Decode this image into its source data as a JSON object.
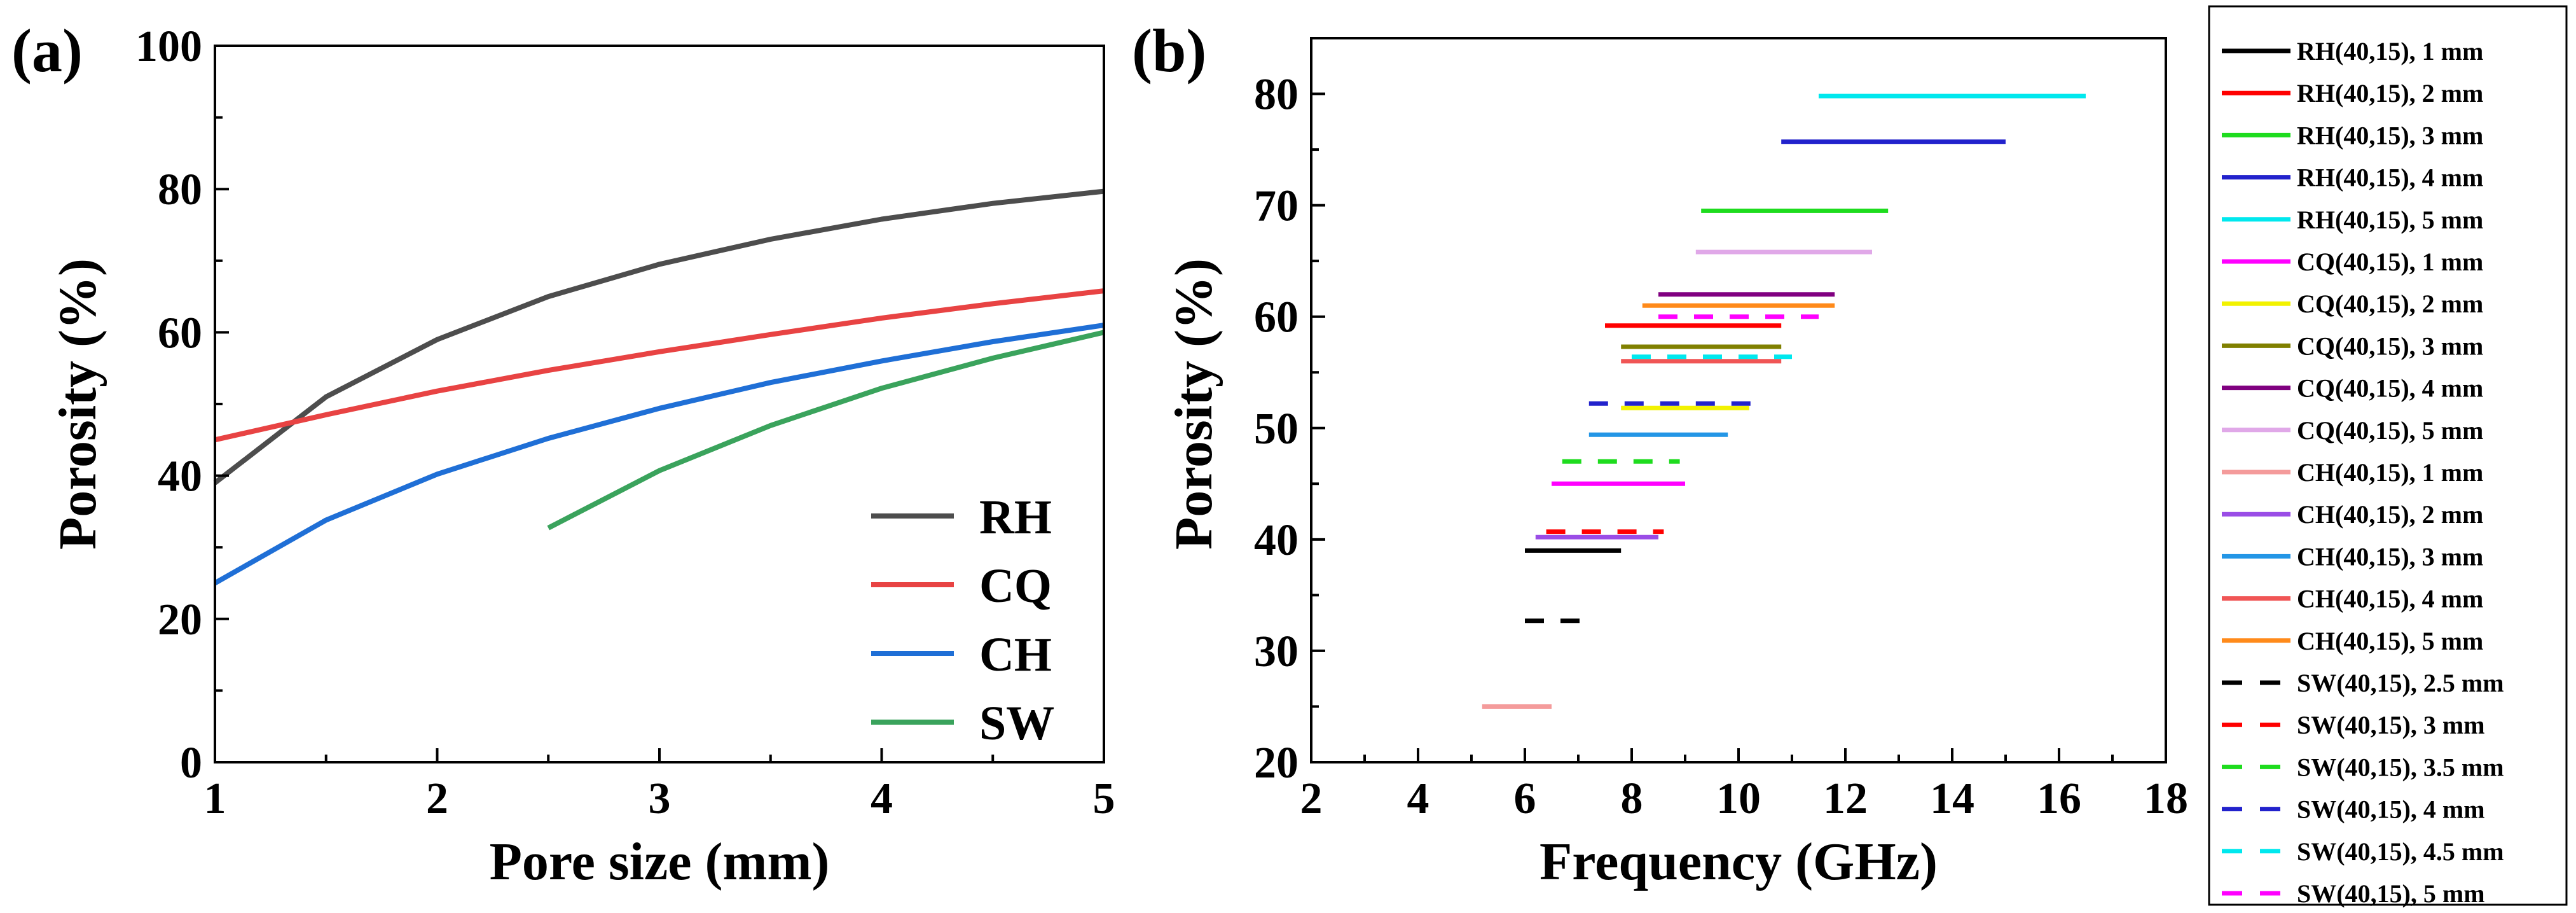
{
  "chart_data": [
    {
      "panel_label": "(a)",
      "type": "line",
      "title": "",
      "xlabel": "Pore size (mm)",
      "ylabel": "Porosity (%)",
      "xlim": [
        1,
        5
      ],
      "ylim": [
        0,
        100
      ],
      "xticks": [
        "1",
        "2",
        "3",
        "4",
        "5"
      ],
      "yticks": [
        "0",
        "20",
        "40",
        "60",
        "80",
        "100"
      ],
      "legend": "bottom-right",
      "series": [
        {
          "name": "RH",
          "color": "#4d4d4d",
          "x": [
            1,
            1.5,
            2,
            2.5,
            3,
            3.5,
            4,
            4.5,
            5
          ],
          "y": [
            39,
            51,
            59,
            65,
            69.5,
            73,
            75.8,
            78,
            79.7
          ]
        },
        {
          "name": "CQ",
          "color": "#e84343",
          "x": [
            1,
            1.5,
            2,
            2.5,
            3,
            3.5,
            4,
            4.5,
            5
          ],
          "y": [
            45,
            48.5,
            51.8,
            54.7,
            57.3,
            59.7,
            62,
            64,
            65.8
          ]
        },
        {
          "name": "CH",
          "color": "#1f6fd6",
          "x": [
            1,
            1.5,
            2,
            2.5,
            3,
            3.5,
            4,
            4.5,
            5
          ],
          "y": [
            25,
            33.8,
            40.2,
            45.2,
            49.4,
            53,
            56,
            58.7,
            61
          ]
        },
        {
          "name": "SW",
          "color": "#3aa35c",
          "x": [
            2.5,
            3,
            3.5,
            4,
            4.5,
            5
          ],
          "y": [
            32.7,
            40.7,
            47,
            52.2,
            56.4,
            60
          ]
        }
      ]
    },
    {
      "panel_label": "(b)",
      "type": "range",
      "title": "",
      "xlabel": "Frequency (GHz)",
      "ylabel": "Porosity (%)",
      "xlim": [
        2,
        18
      ],
      "ylim": [
        20,
        85
      ],
      "xticks": [
        "2",
        "4",
        "6",
        "8",
        "10",
        "12",
        "14",
        "16",
        "18"
      ],
      "yticks": [
        "20",
        "30",
        "40",
        "50",
        "60",
        "70",
        "80"
      ],
      "legend": "outside-right",
      "series": [
        {
          "name": "RH(40,15), 1 mm",
          "color": "#000000",
          "dash": false,
          "y": 39,
          "x_start": 6,
          "x_end": 7.8
        },
        {
          "name": "RH(40,15), 2 mm",
          "color": "#ff0000",
          "dash": false,
          "y": 59.2,
          "x_start": 7.5,
          "x_end": 10.8
        },
        {
          "name": "RH(40,15), 3 mm",
          "color": "#1edc1e",
          "dash": false,
          "y": 69.5,
          "x_start": 9.3,
          "x_end": 12.8
        },
        {
          "name": "RH(40,15), 4 mm",
          "color": "#2222cc",
          "dash": false,
          "y": 75.7,
          "x_start": 10.8,
          "x_end": 15
        },
        {
          "name": "RH(40,15), 5 mm",
          "color": "#00e8ee",
          "dash": false,
          "y": 79.8,
          "x_start": 11.5,
          "x_end": 16.5
        },
        {
          "name": "CQ(40,15), 1 mm",
          "color": "#ff00ff",
          "dash": false,
          "y": 45,
          "x_start": 6.5,
          "x_end": 9
        },
        {
          "name": "CQ(40,15), 2 mm",
          "color": "#f2f200",
          "dash": false,
          "y": 51.8,
          "x_start": 7.8,
          "x_end": 10.2
        },
        {
          "name": "CQ(40,15), 3 mm",
          "color": "#808000",
          "dash": false,
          "y": 57.3,
          "x_start": 7.8,
          "x_end": 10.8
        },
        {
          "name": "CQ(40,15), 4 mm",
          "color": "#800080",
          "dash": false,
          "y": 62,
          "x_start": 8.5,
          "x_end": 11.8
        },
        {
          "name": "CQ(40,15), 5 mm",
          "color": "#e0a8e8",
          "dash": false,
          "y": 65.8,
          "x_start": 9.2,
          "x_end": 12.5
        },
        {
          "name": "CH(40,15), 1 mm",
          "color": "#f49b9b",
          "dash": false,
          "y": 25,
          "x_start": 5.2,
          "x_end": 6.5
        },
        {
          "name": "CH(40,15), 2 mm",
          "color": "#9a4de6",
          "dash": false,
          "y": 40.2,
          "x_start": 6.2,
          "x_end": 8.5
        },
        {
          "name": "CH(40,15), 3 mm",
          "color": "#2396e6",
          "dash": false,
          "y": 49.4,
          "x_start": 7.2,
          "x_end": 9.8
        },
        {
          "name": "CH(40,15), 4 mm",
          "color": "#f05555",
          "dash": false,
          "y": 56,
          "x_start": 7.8,
          "x_end": 10.8
        },
        {
          "name": "CH(40,15), 5 mm",
          "color": "#ff8a1a",
          "dash": false,
          "y": 61,
          "x_start": 8.2,
          "x_end": 11.8
        },
        {
          "name": "SW(40,15), 2.5 mm",
          "color": "#000000",
          "dash": true,
          "y": 32.7,
          "x_start": 6,
          "x_end": 7.2
        },
        {
          "name": "SW(40,15), 3 mm",
          "color": "#ff0000",
          "dash": true,
          "y": 40.7,
          "x_start": 6.4,
          "x_end": 8.6
        },
        {
          "name": "SW(40,15), 3.5 mm",
          "color": "#1edc1e",
          "dash": true,
          "y": 47,
          "x_start": 6.7,
          "x_end": 8.9
        },
        {
          "name": "SW(40,15), 4 mm",
          "color": "#2222cc",
          "dash": true,
          "y": 52.2,
          "x_start": 7.2,
          "x_end": 10.4
        },
        {
          "name": "SW(40,15), 4.5 mm",
          "color": "#00e8ee",
          "dash": true,
          "y": 56.4,
          "x_start": 8,
          "x_end": 11
        },
        {
          "name": "SW(40,15), 5 mm",
          "color": "#ff00ff",
          "dash": true,
          "y": 60,
          "x_start": 8.5,
          "x_end": 11.5
        }
      ]
    }
  ]
}
